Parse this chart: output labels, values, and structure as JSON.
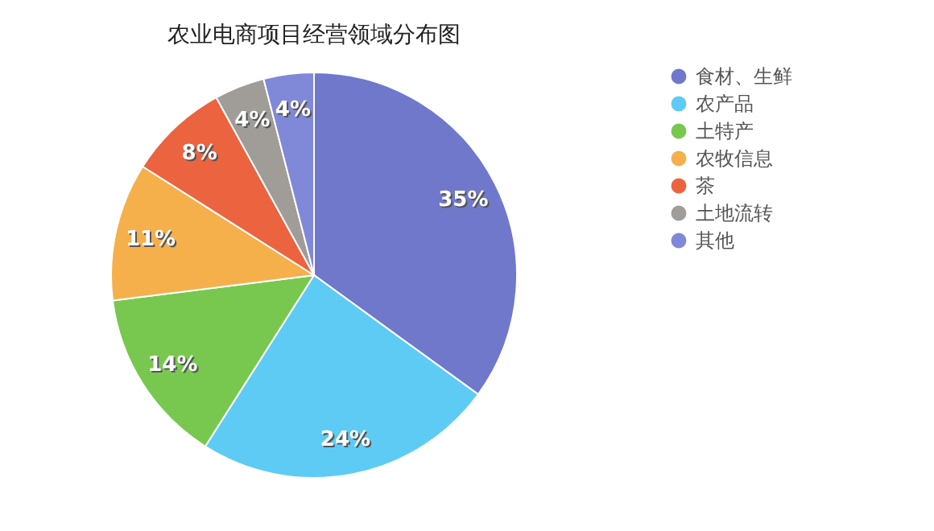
{
  "chart_data": {
    "type": "pie",
    "title": "农业电商项目经营领域分布图",
    "categories": [
      "食材、生鲜",
      "农产品",
      "土特产",
      "农牧信息",
      "茶",
      "土地流转",
      "其他"
    ],
    "values": [
      35,
      24,
      14,
      11,
      8,
      4,
      4
    ],
    "value_labels": [
      "35%",
      "24%",
      "14%",
      "11%",
      "8%",
      "4%",
      "4%"
    ],
    "colors": [
      "#7078cc",
      "#5ecbf5",
      "#78c850",
      "#f5b04c",
      "#ec6340",
      "#a09c98",
      "#8088d8"
    ],
    "legend": "right"
  }
}
